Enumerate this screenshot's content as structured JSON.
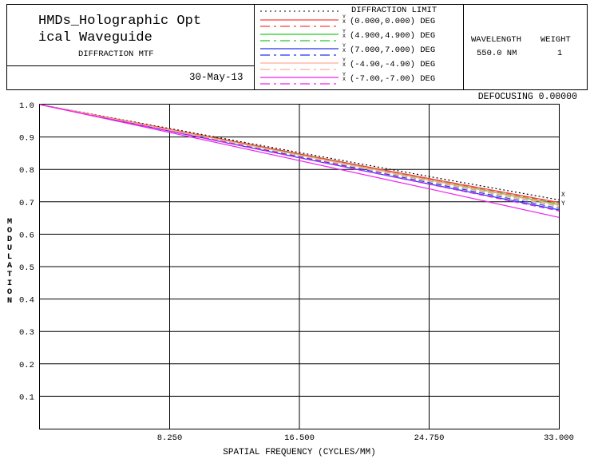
{
  "header": {
    "title_line1": "HMDs_Holographic Opt",
    "title_line2": "ical Waveguide",
    "subtitle": "DIFFRACTION MTF",
    "date": "30-May-13",
    "wavelength_label": "WAVELENGTH",
    "weight_label": "WEIGHT",
    "wavelength_value": "550.0 NM",
    "weight_value": "1",
    "defocusing": "DEFOCUSING 0.00000"
  },
  "legend": {
    "diffraction_limit": "DIFFRACTION LIMIT",
    "entries": [
      {
        "label": "(0.000,0.000) DEG",
        "color": "#ff3a3a"
      },
      {
        "label": "(4.900,4.900) DEG",
        "color": "#22cc22"
      },
      {
        "label": "(7.000,7.000) DEG",
        "color": "#2233ee"
      },
      {
        "label": "(-4.90,-4.90) DEG",
        "color": "#ffaa99"
      },
      {
        "label": "(-7.00,-7.00) DEG",
        "color": "#ee22ee"
      }
    ],
    "y_mark": "Y",
    "x_mark": "X"
  },
  "chart_data": {
    "type": "line",
    "xlabel": "SPATIAL FREQUENCY (CYCLES/MM)",
    "ylabel": "MODULATION",
    "xlim": [
      0,
      33
    ],
    "ylim": [
      0,
      1
    ],
    "xticks": [
      8.25,
      16.5,
      24.75,
      33
    ],
    "xtick_labels": [
      "8.250",
      "16.500",
      "24.750",
      "33.000"
    ],
    "yticks": [
      0.1,
      0.2,
      0.3,
      0.4,
      0.5,
      0.6,
      0.7,
      0.8,
      0.9,
      1.0
    ],
    "ytick_labels": [
      "0.1",
      "0.2",
      "0.3",
      "0.4",
      "0.5",
      "0.6",
      "0.7",
      "0.8",
      "0.9",
      "1.0"
    ],
    "grid": true,
    "end_labels": [
      "X",
      "Y"
    ],
    "x": [
      0,
      8.25,
      16.5,
      24.75,
      33
    ],
    "series": [
      {
        "name": "DIFFRACTION LIMIT",
        "style": "dotted",
        "color": "#000000",
        "values": [
          1.0,
          0.926,
          0.852,
          0.778,
          0.706
        ]
      },
      {
        "name": "(0.000,0.000) DEG Y",
        "style": "solid",
        "color": "#ff3a3a",
        "values": [
          1.0,
          0.924,
          0.848,
          0.772,
          0.698
        ]
      },
      {
        "name": "(0.000,0.000) DEG X",
        "style": "dashed",
        "color": "#ff3a3a",
        "values": [
          1.0,
          0.924,
          0.847,
          0.771,
          0.696
        ]
      },
      {
        "name": "(4.900,4.900) DEG Y",
        "style": "solid",
        "color": "#22cc22",
        "values": [
          1.0,
          0.922,
          0.845,
          0.768,
          0.692
        ]
      },
      {
        "name": "(4.900,4.900) DEG X",
        "style": "dashed",
        "color": "#22cc22",
        "values": [
          1.0,
          0.921,
          0.842,
          0.764,
          0.686
        ]
      },
      {
        "name": "(7.000,7.000) DEG Y",
        "style": "solid",
        "color": "#2233ee",
        "values": [
          1.0,
          0.918,
          0.836,
          0.755,
          0.675
        ]
      },
      {
        "name": "(7.000,7.000) DEG X",
        "style": "dashed",
        "color": "#2233ee",
        "values": [
          1.0,
          0.919,
          0.839,
          0.759,
          0.68
        ]
      },
      {
        "name": "(-4.90,-4.90) DEG Y",
        "style": "solid",
        "color": "#ffaa99",
        "values": [
          1.0,
          0.922,
          0.844,
          0.767,
          0.69
        ]
      },
      {
        "name": "(-4.90,-4.90) DEG X",
        "style": "dashed",
        "color": "#ffaa99",
        "values": [
          1.0,
          0.921,
          0.842,
          0.763,
          0.685
        ]
      },
      {
        "name": "(-7.00,-7.00) DEG Y",
        "style": "solid",
        "color": "#ee22ee",
        "values": [
          1.0,
          0.914,
          0.827,
          0.74,
          0.652
        ]
      },
      {
        "name": "(-7.00,-7.00) DEG X",
        "style": "dashed",
        "color": "#ee22ee",
        "values": [
          1.0,
          0.918,
          0.836,
          0.754,
          0.672
        ]
      }
    ]
  }
}
